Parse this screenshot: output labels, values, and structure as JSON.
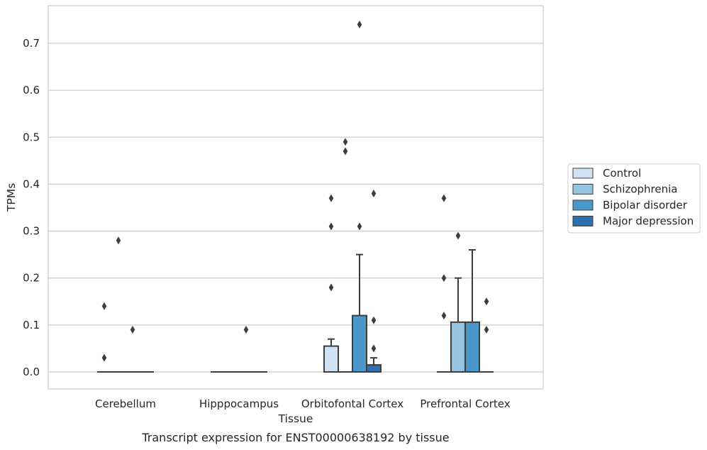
{
  "chart_data": {
    "type": "boxplot",
    "caption": "Transcript expression for ENST00000638192 by tissue",
    "xlabel": "Tissue",
    "ylabel": "TPMs",
    "ylim": [
      -0.037,
      0.78
    ],
    "yticks": [
      0.0,
      0.1,
      0.2,
      0.3,
      0.4,
      0.5,
      0.6,
      0.7
    ],
    "ytick_labels": [
      "0.0",
      "0.1",
      "0.2",
      "0.3",
      "0.4",
      "0.5",
      "0.6",
      "0.7"
    ],
    "grid": "horizontal",
    "legend_position": "right",
    "categories": [
      "Cerebellum",
      "Hipppocampus",
      "Orbitofontal Cortex",
      "Prefrontal Cortex"
    ],
    "series": [
      {
        "name": "Control",
        "color": "#d0e1f2",
        "boxes": [
          {
            "q1": 0,
            "median": 0,
            "q3": 0,
            "whislo": 0,
            "whishi": 0,
            "fliers": [
              0.14,
              0.03
            ]
          },
          {
            "q1": 0,
            "median": 0,
            "q3": 0,
            "whislo": 0,
            "whishi": 0,
            "fliers": []
          },
          {
            "q1": 0,
            "median": 0,
            "q3": 0.055,
            "whislo": 0,
            "whishi": 0.07,
            "fliers": [
              0.37,
              0.31,
              0.18
            ]
          },
          {
            "q1": 0,
            "median": 0,
            "q3": 0,
            "whislo": 0,
            "whishi": 0,
            "fliers": [
              0.37,
              0.2,
              0.12
            ]
          }
        ]
      },
      {
        "name": "Schizophrenia",
        "color": "#94c4df",
        "boxes": [
          {
            "q1": 0,
            "median": 0,
            "q3": 0,
            "whislo": 0,
            "whishi": 0,
            "fliers": [
              0.28
            ]
          },
          {
            "q1": 0,
            "median": 0,
            "q3": 0,
            "whislo": 0,
            "whishi": 0,
            "fliers": []
          },
          {
            "q1": 0,
            "median": 0,
            "q3": 0,
            "whislo": 0,
            "whishi": 0,
            "fliers": [
              0.49,
              0.47
            ]
          },
          {
            "q1": 0,
            "median": 0,
            "q3": 0.106,
            "whislo": 0,
            "whishi": 0.2,
            "fliers": [
              0.29
            ]
          }
        ]
      },
      {
        "name": "Bipolar disorder",
        "color": "#4a98c9",
        "boxes": [
          {
            "q1": 0,
            "median": 0,
            "q3": 0,
            "whislo": 0,
            "whishi": 0,
            "fliers": [
              0.09
            ]
          },
          {
            "q1": 0,
            "median": 0,
            "q3": 0,
            "whislo": 0,
            "whishi": 0,
            "fliers": [
              0.09
            ]
          },
          {
            "q1": 0,
            "median": 0,
            "q3": 0.12,
            "whislo": 0,
            "whishi": 0.25,
            "fliers": [
              0.74,
              0.31
            ]
          },
          {
            "q1": 0,
            "median": 0,
            "q3": 0.106,
            "whislo": 0,
            "whishi": 0.26,
            "fliers": []
          }
        ]
      },
      {
        "name": "Major depression",
        "color": "#2e6fb0",
        "boxes": [
          {
            "q1": 0,
            "median": 0,
            "q3": 0,
            "whislo": 0,
            "whishi": 0,
            "fliers": []
          },
          {
            "q1": 0,
            "median": 0,
            "q3": 0,
            "whislo": 0,
            "whishi": 0,
            "fliers": []
          },
          {
            "q1": 0,
            "median": 0,
            "q3": 0.015,
            "whislo": 0,
            "whishi": 0.03,
            "fliers": [
              0.38,
              0.11,
              0.05
            ]
          },
          {
            "q1": 0,
            "median": 0,
            "q3": 0,
            "whislo": 0,
            "whishi": 0,
            "fliers": [
              0.15,
              0.09
            ]
          }
        ]
      }
    ]
  }
}
